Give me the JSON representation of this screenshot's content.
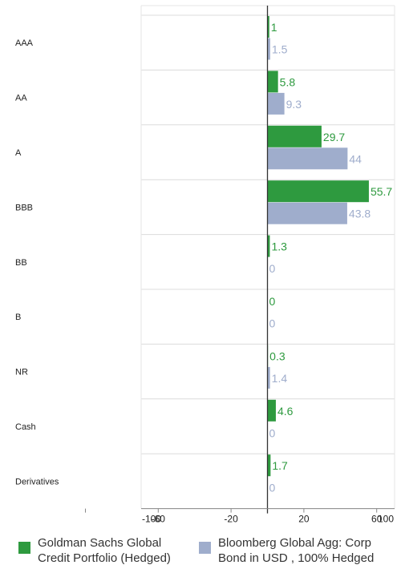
{
  "chart_data": {
    "type": "bar",
    "orientation": "horizontal",
    "categories": [
      "AAA",
      "AA",
      "A",
      "BBB",
      "BB",
      "B",
      "NR",
      "Cash",
      "Derivatives"
    ],
    "series": [
      {
        "name": "Goldman Sachs Global\nCredit Portfolio (Hedged)",
        "color": "#2e9a3f",
        "values": [
          1,
          5.8,
          29.7,
          55.7,
          1.3,
          0,
          0.3,
          4.6,
          1.7
        ],
        "labels": [
          "1",
          "5.8",
          "29.7",
          "55.7",
          "1.3",
          "0",
          "0.3",
          "4.6",
          "1.7"
        ]
      },
      {
        "name": "Bloomberg Global Agg: Corp\nBond in USD , 100% Hedged",
        "color": "#9fadcc",
        "values": [
          1.5,
          9.3,
          44,
          43.8,
          0,
          0,
          1.4,
          0,
          0
        ],
        "labels": [
          "1.5",
          "9.3",
          "44",
          "43.8",
          "0",
          "0",
          "1.4",
          "0",
          "0"
        ]
      }
    ],
    "x_ticks": [
      -100,
      -60,
      -20,
      20,
      60,
      100
    ],
    "xlim": [
      -100,
      100
    ],
    "grid": true,
    "legend_position": "bottom"
  }
}
